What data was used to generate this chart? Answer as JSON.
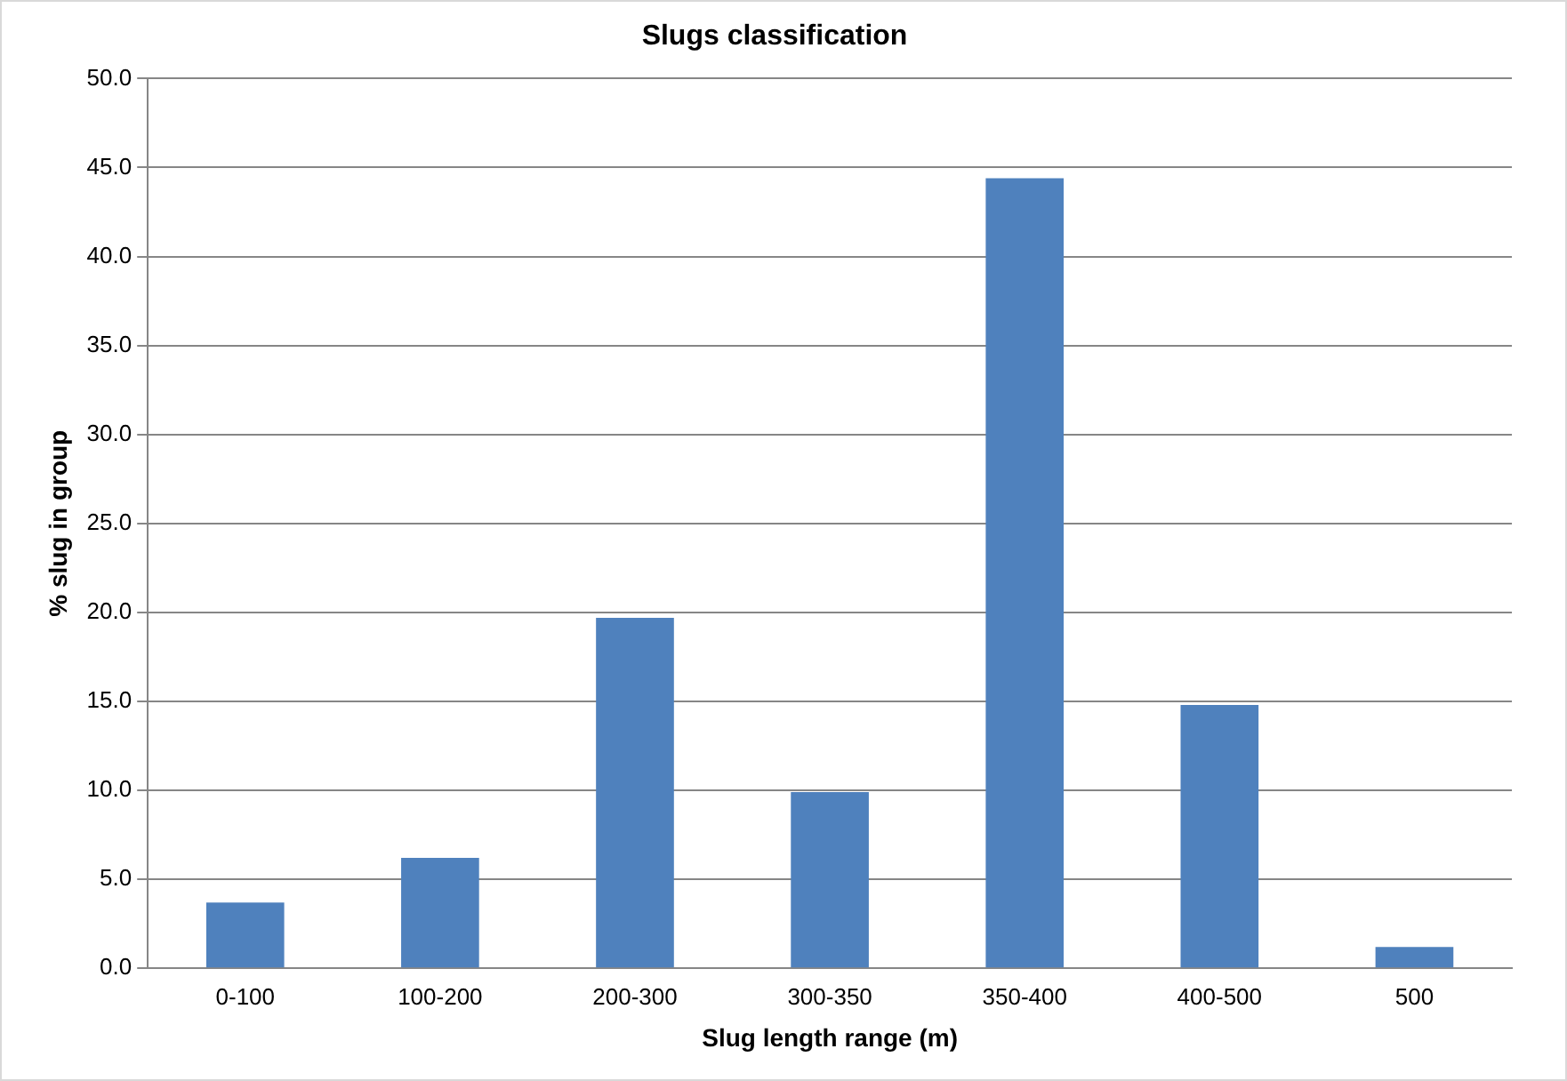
{
  "chart_data": {
    "type": "bar",
    "title": "Slugs classification",
    "xlabel": "Slug length range (m)",
    "ylabel": "% slug in group",
    "categories": [
      "0-100",
      "100-200",
      "200-300",
      "300-350",
      "350-400",
      "400-500",
      "500"
    ],
    "values": [
      3.7,
      6.2,
      19.7,
      9.9,
      44.4,
      14.8,
      1.2
    ],
    "color": "#4f81bd",
    "ylim": [
      0,
      50
    ],
    "yticks": [
      {
        "value": 0,
        "label": "0.0"
      },
      {
        "value": 5,
        "label": "5.0"
      },
      {
        "value": 10,
        "label": "10.0"
      },
      {
        "value": 15,
        "label": "15.0"
      },
      {
        "value": 20,
        "label": "20.0"
      },
      {
        "value": 25,
        "label": "25.0"
      },
      {
        "value": 30,
        "label": "30.0"
      },
      {
        "value": 35,
        "label": "35.0"
      },
      {
        "value": 40,
        "label": "40.0"
      },
      {
        "value": 45,
        "label": "45.0"
      },
      {
        "value": 50,
        "label": "50.0"
      }
    ],
    "grid": "y",
    "legend": false
  }
}
